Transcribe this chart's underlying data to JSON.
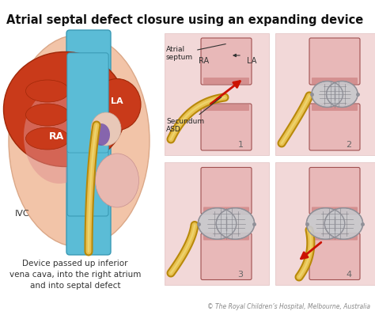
{
  "title": "Atrial septal defect closure using an expanding device",
  "title_fontsize": 10.5,
  "title_fontweight": "bold",
  "bg_color": "#ffffff",
  "panel_bg": "#f2d8d8",
  "caption": "Device passed up inferior\nvena cava, into the right atrium\nand into septal defect",
  "caption_fontsize": 7.5,
  "footnote": "© The Royal Children’s Hospital, Melbourne, Australia",
  "footnote_fontsize": 5.5,
  "colors": {
    "orange_red": "#c93a1a",
    "blue_vessel": "#5bbcd6",
    "skin_pink": "#f0b8a0",
    "ra_pink": "#f0c0b0",
    "catheter_outer": "#b8890a",
    "catheter_inner": "#e8c050",
    "device_fill": "#c8c8cc",
    "device_edge": "#909098",
    "device_line": "#787880",
    "red_arrow": "#cc1100",
    "tissue_pink": "#d49090",
    "tissue_light": "#e8b8b8",
    "dark_red_tissue": "#a05050",
    "purple_asd": "#7744aa",
    "white_sep": "#e8d8c8",
    "label_color": "#333333",
    "number_color": "#666666"
  }
}
